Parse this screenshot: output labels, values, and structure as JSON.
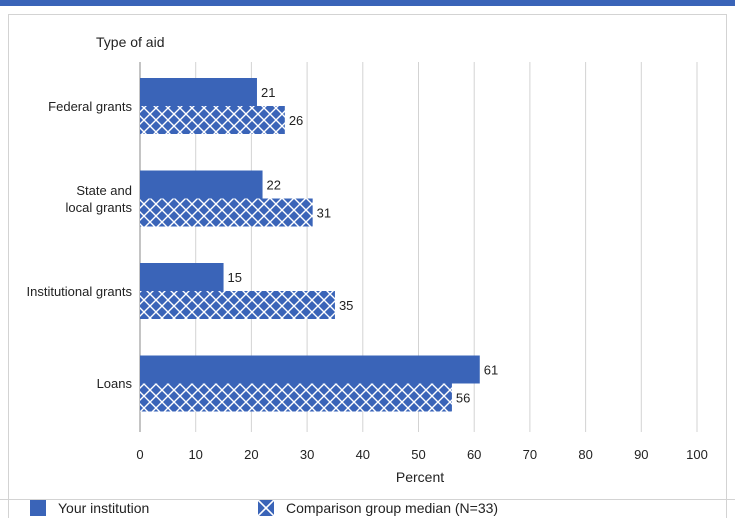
{
  "chart_data": {
    "type": "bar",
    "orientation": "horizontal",
    "categories": [
      "Federal grants",
      "State and\nlocal grants",
      "Institutional grants",
      "Loans"
    ],
    "series": [
      {
        "name": "Your institution",
        "values": [
          21,
          22,
          15,
          61
        ],
        "pattern": "solid"
      },
      {
        "name": "Comparison group median (N=33)",
        "values": [
          26,
          31,
          35,
          56
        ],
        "pattern": "crosshatch"
      }
    ],
    "xlabel": "Percent",
    "ylabel": "Type of aid",
    "xlim": [
      0,
      100
    ],
    "xticks": [
      0,
      10,
      20,
      30,
      40,
      50,
      60,
      70,
      80,
      90,
      100
    ],
    "grid": true,
    "legend_position": "bottom"
  },
  "colors": {
    "bar": "#3a64b8",
    "hatch": "#ffffff",
    "grid": "#d3d3d3"
  }
}
